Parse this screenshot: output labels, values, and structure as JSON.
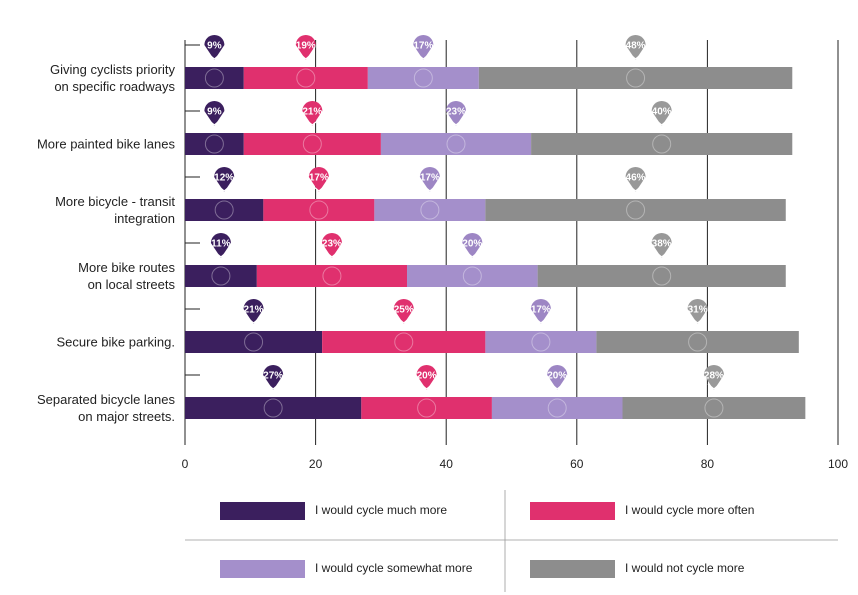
{
  "chart_data": {
    "type": "bar",
    "orientation": "horizontal",
    "stacked": true,
    "categories": [
      "Giving cyclists priority\non specific roadways",
      "More painted bike lanes",
      "More bicycle - transit\nintegration",
      "More bike routes\non local streets",
      "Secure bike parking.",
      "Separated bicycle lanes\non major streets."
    ],
    "series": [
      {
        "name": "I would cycle much more",
        "color": "#3b1f5e",
        "values": [
          9,
          9,
          12,
          11,
          21,
          27
        ],
        "value_labels": [
          "9%",
          "9%",
          "12%",
          "11%",
          "21%",
          "27%"
        ]
      },
      {
        "name": "I would cycle more often",
        "color": "#e0306e",
        "values": [
          19,
          21,
          17,
          23,
          25,
          20
        ],
        "value_labels": [
          "19%",
          "21%",
          "17%",
          "23%",
          "25%",
          "20%"
        ]
      },
      {
        "name": "I would cycle somewhat more",
        "color": "#a48fcb",
        "values": [
          17,
          23,
          17,
          20,
          17,
          20
        ],
        "value_labels": [
          "17%",
          "23%",
          "17%",
          "20%",
          "17%",
          "20%"
        ]
      },
      {
        "name": "I would not cycle more",
        "color": "#8d8d8d",
        "values": [
          48,
          40,
          46,
          38,
          31,
          28
        ],
        "value_labels": [
          "48%",
          "40%",
          "46%",
          "38%",
          "31%",
          "28%"
        ]
      }
    ],
    "xlim": [
      0,
      100
    ],
    "xticks": [
      0,
      20,
      40,
      60,
      80,
      100
    ],
    "grid": true
  }
}
